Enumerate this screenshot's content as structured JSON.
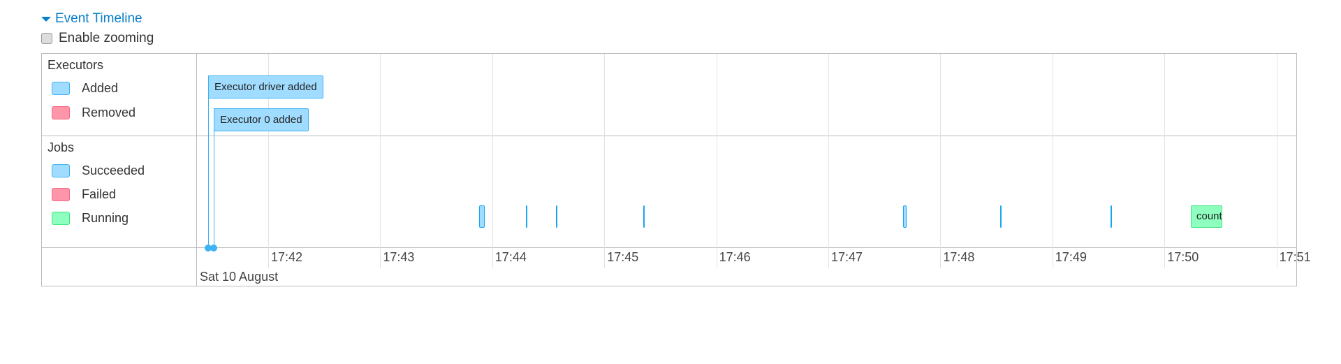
{
  "header": {
    "title": "Event Timeline",
    "zoom_label": "Enable zooming",
    "zoom_checked": false
  },
  "groups": {
    "executors": {
      "label": "Executors",
      "legend": [
        {
          "label": "Added",
          "color": "#a0dcff"
        },
        {
          "label": "Removed",
          "color": "#ff95a8"
        }
      ]
    },
    "jobs": {
      "label": "Jobs",
      "legend": [
        {
          "label": "Succeeded",
          "color": "#a0dcff"
        },
        {
          "label": "Failed",
          "color": "#ff95a8"
        },
        {
          "label": "Running",
          "color": "#8fffc0"
        }
      ]
    }
  },
  "executor_events": [
    {
      "label": "Executor driver added",
      "time": "17:41:28"
    },
    {
      "label": "Executor 0 added",
      "time": "17:41:31"
    }
  ],
  "jobs": [
    {
      "start": "17:43:53",
      "end": "17:43:56",
      "status": "succeeded"
    },
    {
      "start": "17:44:18",
      "end": "17:44:18",
      "status": "succeeded"
    },
    {
      "start": "17:44:34",
      "end": "17:44:34",
      "status": "succeeded"
    },
    {
      "start": "17:45:21",
      "end": "17:45:21",
      "status": "succeeded"
    },
    {
      "start": "17:47:40",
      "end": "17:47:42",
      "status": "succeeded"
    },
    {
      "start": "17:48:32",
      "end": "17:48:32",
      "status": "succeeded"
    },
    {
      "start": "17:49:31",
      "end": "17:49:31",
      "status": "succeeded"
    },
    {
      "start": "17:50:14",
      "end": "17:50:31",
      "status": "running",
      "label": "count"
    }
  ],
  "axis": {
    "ticks": [
      "17:42",
      "17:43",
      "17:44",
      "17:45",
      "17:46",
      "17:47",
      "17:48",
      "17:49",
      "17:50",
      "17:51"
    ],
    "date": "Sat 10 August"
  }
}
